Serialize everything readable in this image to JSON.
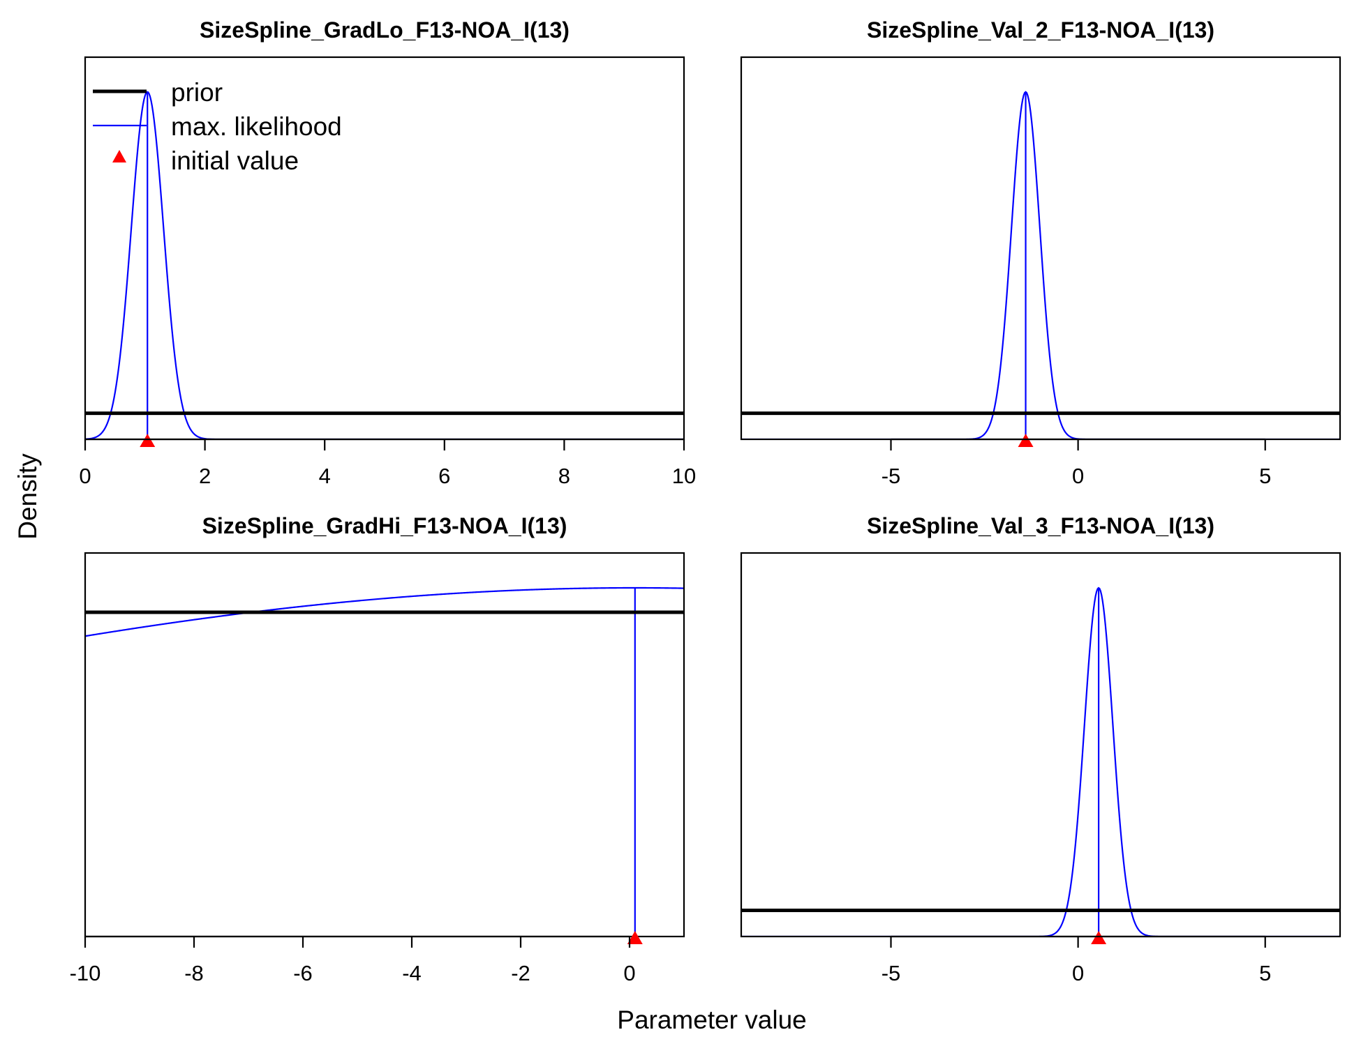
{
  "figure": {
    "xlabel": "Parameter value",
    "ylabel": "Density"
  },
  "legend": {
    "placement": "top-left of first panel",
    "items": [
      {
        "label": "prior",
        "kind": "line",
        "color": "#000000"
      },
      {
        "label": "max. likelihood",
        "kind": "line",
        "color": "#0000ff"
      },
      {
        "label": "initial value",
        "kind": "triangle",
        "color": "#ff0000"
      }
    ]
  },
  "chart_data": [
    {
      "type": "line",
      "title": "SizeSpline_GradLo_F13-NOA_I(13)",
      "xlim": [
        0,
        10
      ],
      "ylim": [
        0,
        1.1
      ],
      "xticks": [
        0,
        2,
        4,
        6,
        8,
        10
      ],
      "xtick_labels": [
        "0",
        "2",
        "4",
        "6",
        "8",
        "10"
      ],
      "prior": {
        "shape": "flat",
        "level": 0.075
      },
      "max_likelihood": {
        "shape": "normal",
        "mean": 1.04,
        "sd": 0.27,
        "peak": 1.0
      },
      "initial_value": 1.04
    },
    {
      "type": "line",
      "title": "SizeSpline_Val_2_F13-NOA_I(13)",
      "xlim": [
        -9,
        7
      ],
      "ylim": [
        0,
        1.1
      ],
      "xticks": [
        -5,
        0,
        5
      ],
      "xtick_labels": [
        "-5",
        "0",
        "5"
      ],
      "prior": {
        "shape": "flat",
        "level": 0.075
      },
      "max_likelihood": {
        "shape": "normal",
        "mean": -1.4,
        "sd": 0.38,
        "peak": 1.0
      },
      "initial_value": -1.4
    },
    {
      "type": "line",
      "title": "SizeSpline_GradHi_F13-NOA_I(13)",
      "xlim": [
        -10,
        1
      ],
      "ylim": [
        0,
        1.1
      ],
      "xticks": [
        -10,
        -8,
        -6,
        -4,
        -2,
        0
      ],
      "xtick_labels": [
        "-10",
        "-8",
        "-6",
        "-4",
        "-2",
        "0"
      ],
      "prior": {
        "shape": "flat",
        "level": 0.93
      },
      "max_likelihood": {
        "shape": "normal",
        "mean": 0.1,
        "sd": 18.5,
        "peak": 1.0
      },
      "initial_value": 0.1
    },
    {
      "type": "line",
      "title": "SizeSpline_Val_3_F13-NOA_I(13)",
      "xlim": [
        -9,
        7
      ],
      "ylim": [
        0,
        1.1
      ],
      "xticks": [
        -5,
        0,
        5
      ],
      "xtick_labels": [
        "-5",
        "0",
        "5"
      ],
      "prior": {
        "shape": "flat",
        "level": 0.075
      },
      "max_likelihood": {
        "shape": "normal",
        "mean": 0.55,
        "sd": 0.38,
        "peak": 1.0
      },
      "initial_value": 0.55
    }
  ]
}
